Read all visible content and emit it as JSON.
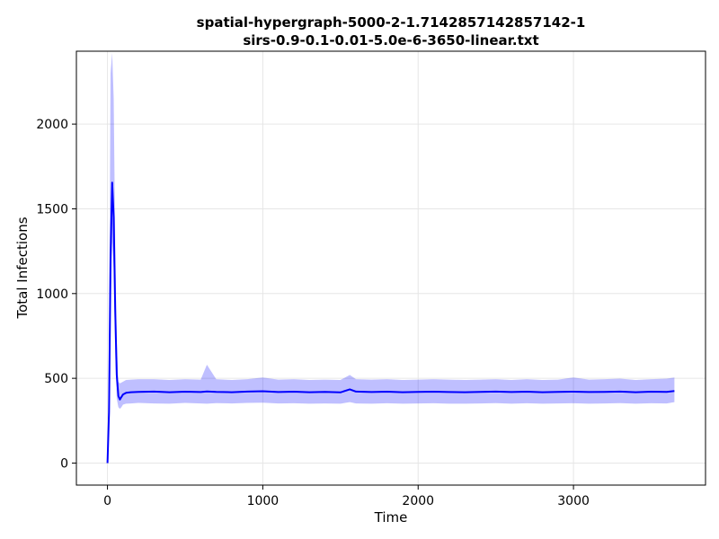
{
  "chart_data": {
    "type": "line",
    "title_lines": [
      "spatial-hypergraph-5000-2-1.7142857142857142-1",
      "sirs-0.9-0.1-0.01-5.0e-6-3650-linear.txt"
    ],
    "xlabel": "Time",
    "ylabel": "Total Infections",
    "xlim": [
      -200,
      3850
    ],
    "ylim": [
      -130,
      2430
    ],
    "xticks": [
      0,
      1000,
      2000,
      3000
    ],
    "yticks": [
      0,
      500,
      1000,
      1500,
      2000
    ],
    "grid": true,
    "series": [
      {
        "line_color": "#0000ff",
        "band_color": "#0000ff",
        "band_opacity": 0.25,
        "x": [
          0,
          10,
          20,
          30,
          40,
          50,
          60,
          70,
          80,
          90,
          100,
          120,
          150,
          200,
          300,
          400,
          500,
          600,
          640,
          700,
          800,
          900,
          1000,
          1100,
          1200,
          1300,
          1400,
          1500,
          1560,
          1600,
          1700,
          1800,
          1900,
          2000,
          2100,
          2200,
          2300,
          2400,
          2500,
          2600,
          2700,
          2800,
          2900,
          3000,
          3100,
          3200,
          3300,
          3400,
          3500,
          3600,
          3650
        ],
        "mean": [
          0,
          300,
          1200,
          1655,
          1450,
          900,
          520,
          395,
          375,
          390,
          405,
          415,
          418,
          420,
          422,
          418,
          421,
          419,
          423,
          420,
          418,
          422,
          424,
          419,
          421,
          418,
          420,
          417,
          435,
          422,
          419,
          421,
          418,
          420,
          421,
          419,
          418,
          420,
          422,
          419,
          421,
          418,
          420,
          421,
          419,
          420,
          422,
          418,
          421,
          420,
          425
        ],
        "lower": [
          0,
          200,
          900,
          1300,
          1150,
          650,
          380,
          330,
          320,
          330,
          345,
          350,
          352,
          355,
          352,
          350,
          355,
          352,
          350,
          354,
          352,
          355,
          356,
          352,
          353,
          350,
          352,
          350,
          360,
          352,
          350,
          353,
          350,
          352,
          353,
          350,
          350,
          352,
          354,
          350,
          353,
          350,
          352,
          353,
          350,
          352,
          354,
          350,
          353,
          352,
          360
        ],
        "upper": [
          10,
          650,
          2300,
          2420,
          2150,
          1300,
          720,
          480,
          470,
          475,
          480,
          490,
          492,
          495,
          495,
          490,
          495,
          492,
          580,
          495,
          490,
          495,
          505,
          492,
          495,
          490,
          492,
          490,
          520,
          495,
          492,
          495,
          490,
          492,
          495,
          492,
          490,
          492,
          495,
          490,
          495,
          490,
          492,
          505,
          492,
          495,
          498,
          490,
          495,
          498,
          505
        ]
      }
    ]
  }
}
